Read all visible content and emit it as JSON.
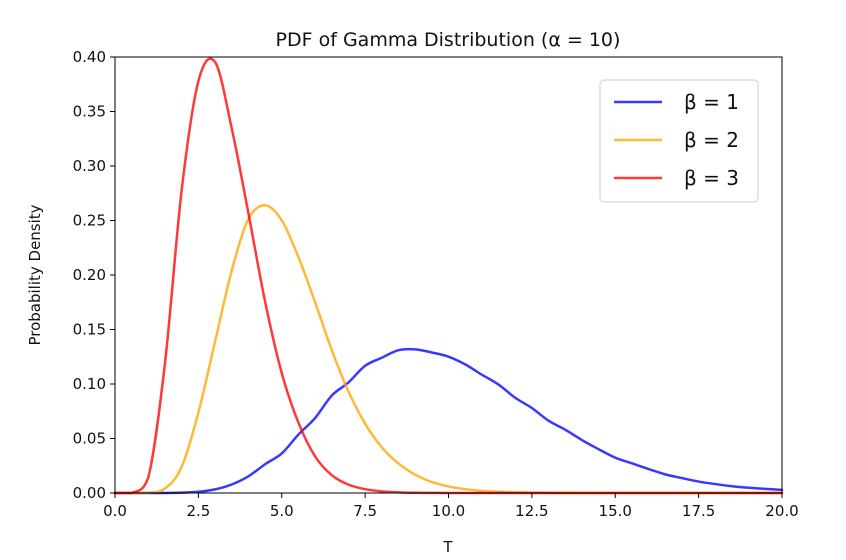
{
  "chart_data": {
    "type": "line",
    "title": "PDF of Gamma Distribution (α = 10)",
    "xlabel": "T",
    "ylabel": "Probability Density",
    "xlim": [
      0,
      20
    ],
    "ylim": [
      0,
      0.4
    ],
    "xticks": [
      0,
      2.5,
      5,
      7.5,
      10,
      12.5,
      15,
      17.5,
      20
    ],
    "xtick_labels": [
      "0.0",
      "2.5",
      "5.0",
      "7.5",
      "10.0",
      "12.5",
      "15.0",
      "17.5",
      "20.0"
    ],
    "yticks": [
      0,
      0.05,
      0.1,
      0.15,
      0.2,
      0.25,
      0.3,
      0.35,
      0.4
    ],
    "ytick_labels": [
      "0.00",
      "0.05",
      "0.10",
      "0.15",
      "0.20",
      "0.25",
      "0.30",
      "0.35",
      "0.40"
    ],
    "grid": false,
    "legend_position": "top-right",
    "x": [
      0,
      0.5,
      1,
      1.5,
      2,
      2.5,
      3,
      3.5,
      4,
      4.5,
      5,
      5.5,
      6,
      6.5,
      7,
      7.5,
      8,
      8.5,
      9,
      9.5,
      10,
      10.5,
      11,
      11.5,
      12,
      12.5,
      13,
      13.5,
      14,
      14.5,
      15,
      15.5,
      16,
      16.5,
      17,
      17.5,
      18,
      18.5,
      19,
      19.5,
      20
    ],
    "series": [
      {
        "name": "β = 1",
        "color": "#0000ff",
        "values": [
          0,
          0,
          0,
          0,
          0.0003,
          0.0011,
          0.0033,
          0.0078,
          0.0153,
          0.0264,
          0.0363,
          0.0536,
          0.0688,
          0.0894,
          0.1014,
          0.1167,
          0.1241,
          0.131,
          0.1318,
          0.1289,
          0.1251,
          0.118,
          0.1085,
          0.0995,
          0.0874,
          0.078,
          0.0663,
          0.0581,
          0.0486,
          0.0402,
          0.0324,
          0.0272,
          0.022,
          0.0171,
          0.0137,
          0.0105,
          0.0082,
          0.0062,
          0.0048,
          0.0038,
          0.0029
        ]
      },
      {
        "name": "β = 2",
        "color": "#ffa500",
        "values": [
          0,
          0,
          0.0002,
          0.0041,
          0.0241,
          0.0738,
          0.1389,
          0.204,
          0.2513,
          0.264,
          0.2502,
          0.2165,
          0.175,
          0.1311,
          0.0932,
          0.0636,
          0.0419,
          0.0271,
          0.0168,
          0.0101,
          0.006,
          0.0035,
          0.002,
          0.0011,
          0.0006,
          0.0003,
          0.0002,
          0.0001,
          0,
          0,
          0,
          0,
          0,
          0,
          0,
          0,
          0,
          0,
          0,
          0,
          0
        ]
      },
      {
        "name": "β = 3",
        "color": "#ff0000",
        "values": [
          0,
          0,
          0.0144,
          0.1195,
          0.2781,
          0.3777,
          0.3954,
          0.3345,
          0.2568,
          0.1757,
          0.11,
          0.0645,
          0.0336,
          0.0163,
          0.0077,
          0.0035,
          0.0015,
          0.0006,
          0.0002,
          0.0001,
          0,
          0,
          0,
          0,
          0,
          0,
          0,
          0,
          0,
          0,
          0,
          0,
          0,
          0,
          0,
          0,
          0,
          0,
          0,
          0,
          0
        ]
      }
    ]
  }
}
